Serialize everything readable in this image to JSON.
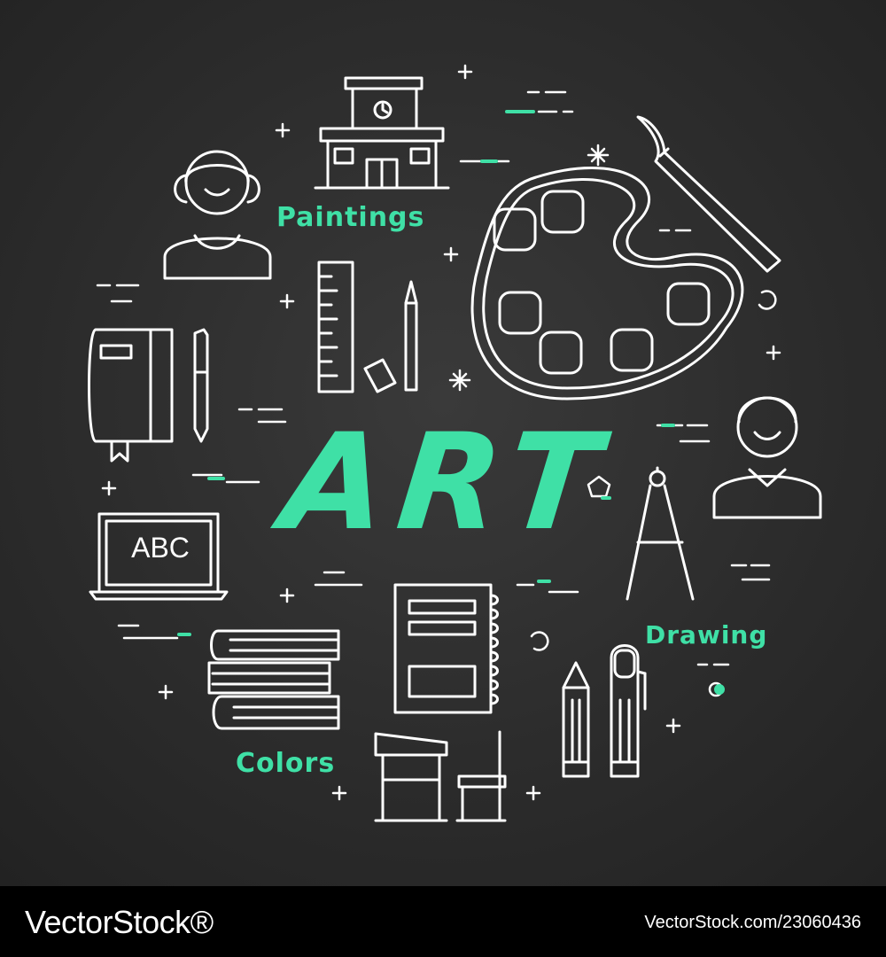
{
  "title": "ART",
  "labels": {
    "paintings": "Paintings",
    "drawing": "Drawing",
    "colors": "Colors",
    "laptop_screen": "ABC"
  },
  "footer": {
    "brand": "VectorStock®",
    "credit": "VectorStock.com/23060436"
  },
  "colors": {
    "background": "#2c2c2c",
    "accent": "#3fe0a6",
    "line": "#ffffff"
  }
}
